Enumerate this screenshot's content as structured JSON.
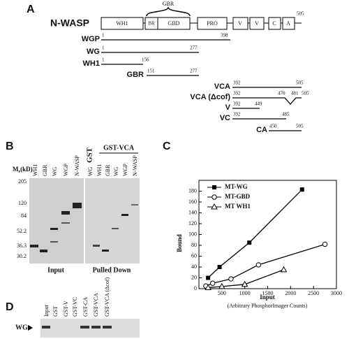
{
  "panel_a": {
    "label": "A",
    "protein": "N-WASP",
    "gbr_bracket": "GBR",
    "domains": [
      "WH1",
      "BR",
      "GBD",
      "PRO",
      "V",
      "V",
      "C",
      "A"
    ],
    "length": 505,
    "constructs": [
      {
        "name": "WGP",
        "start": 1,
        "end": 398
      },
      {
        "name": "WG",
        "start": 1,
        "end": 277
      },
      {
        "name": "WH1",
        "start": 1,
        "end": 156
      },
      {
        "name": "GBR",
        "start": 151,
        "end": 277
      },
      {
        "name": "VCA",
        "start": 392,
        "end": 505
      },
      {
        "name": "VCA (Δcof)",
        "start": 392,
        "deletion": [
          470,
          481
        ],
        "end": 505
      },
      {
        "name": "V",
        "start": 392,
        "end": 449
      },
      {
        "name": "VC",
        "start": 392,
        "end": 485
      },
      {
        "name": "CA",
        "start": 450,
        "end": 505
      }
    ]
  },
  "panel_b": {
    "label": "B",
    "mr": {
      "symbol": "M",
      "subscript": "r",
      "unit": "(kD)"
    },
    "markers": [
      205,
      120,
      84,
      52.2,
      36.3,
      30.2
    ],
    "gst": "GST",
    "gst_vca": "GST-VCA",
    "input_lanes": [
      "WH1",
      "GBR",
      "WG",
      "WGP",
      "N-WASP"
    ],
    "pulldown_lanes": [
      "WG",
      "WH1",
      "GBR",
      "WG",
      "WGP",
      "N-WASP"
    ],
    "input_caption": "Input",
    "pulldown_caption": "Pulled Down"
  },
  "panel_c_label": "C",
  "chart_data": {
    "type": "line",
    "y_label": "Bound",
    "x_label": "Input",
    "x_sublabel": "(Arbitrary PhosphorImager Counts)",
    "xlim": [
      0,
      3000
    ],
    "xticks": [
      500,
      1000,
      1500,
      2000,
      2500,
      3000
    ],
    "ylim": [
      0,
      200
    ],
    "yticks": [
      0,
      20,
      40,
      60,
      80,
      100,
      120,
      140,
      160,
      180
    ],
    "legend": "upper left",
    "series": [
      {
        "name": "MT-WG",
        "color": "#000000",
        "marker": "filled-square",
        "x": [
          200,
          450,
          1100,
          2250
        ],
        "values": [
          20,
          40,
          85,
          183
        ]
      },
      {
        "name": "MT-GBD",
        "color": "#000000",
        "marker": "open-circle",
        "x": [
          150,
          300,
          700,
          1300,
          2750
        ],
        "values": [
          5,
          10,
          18,
          44,
          82
        ]
      },
      {
        "name": "MT WH1",
        "color": "#000000",
        "marker": "open-triangle",
        "x": [
          200,
          500,
          1000,
          1850
        ],
        "values": [
          2,
          4,
          8,
          35
        ]
      }
    ]
  },
  "panel_d": {
    "label": "D",
    "lanes": [
      "Input",
      "GST",
      "GST-V",
      "GST-VC",
      "GST-CA",
      "GST-VCA",
      "GST-VCA (Δcof)"
    ],
    "band": "WG"
  }
}
